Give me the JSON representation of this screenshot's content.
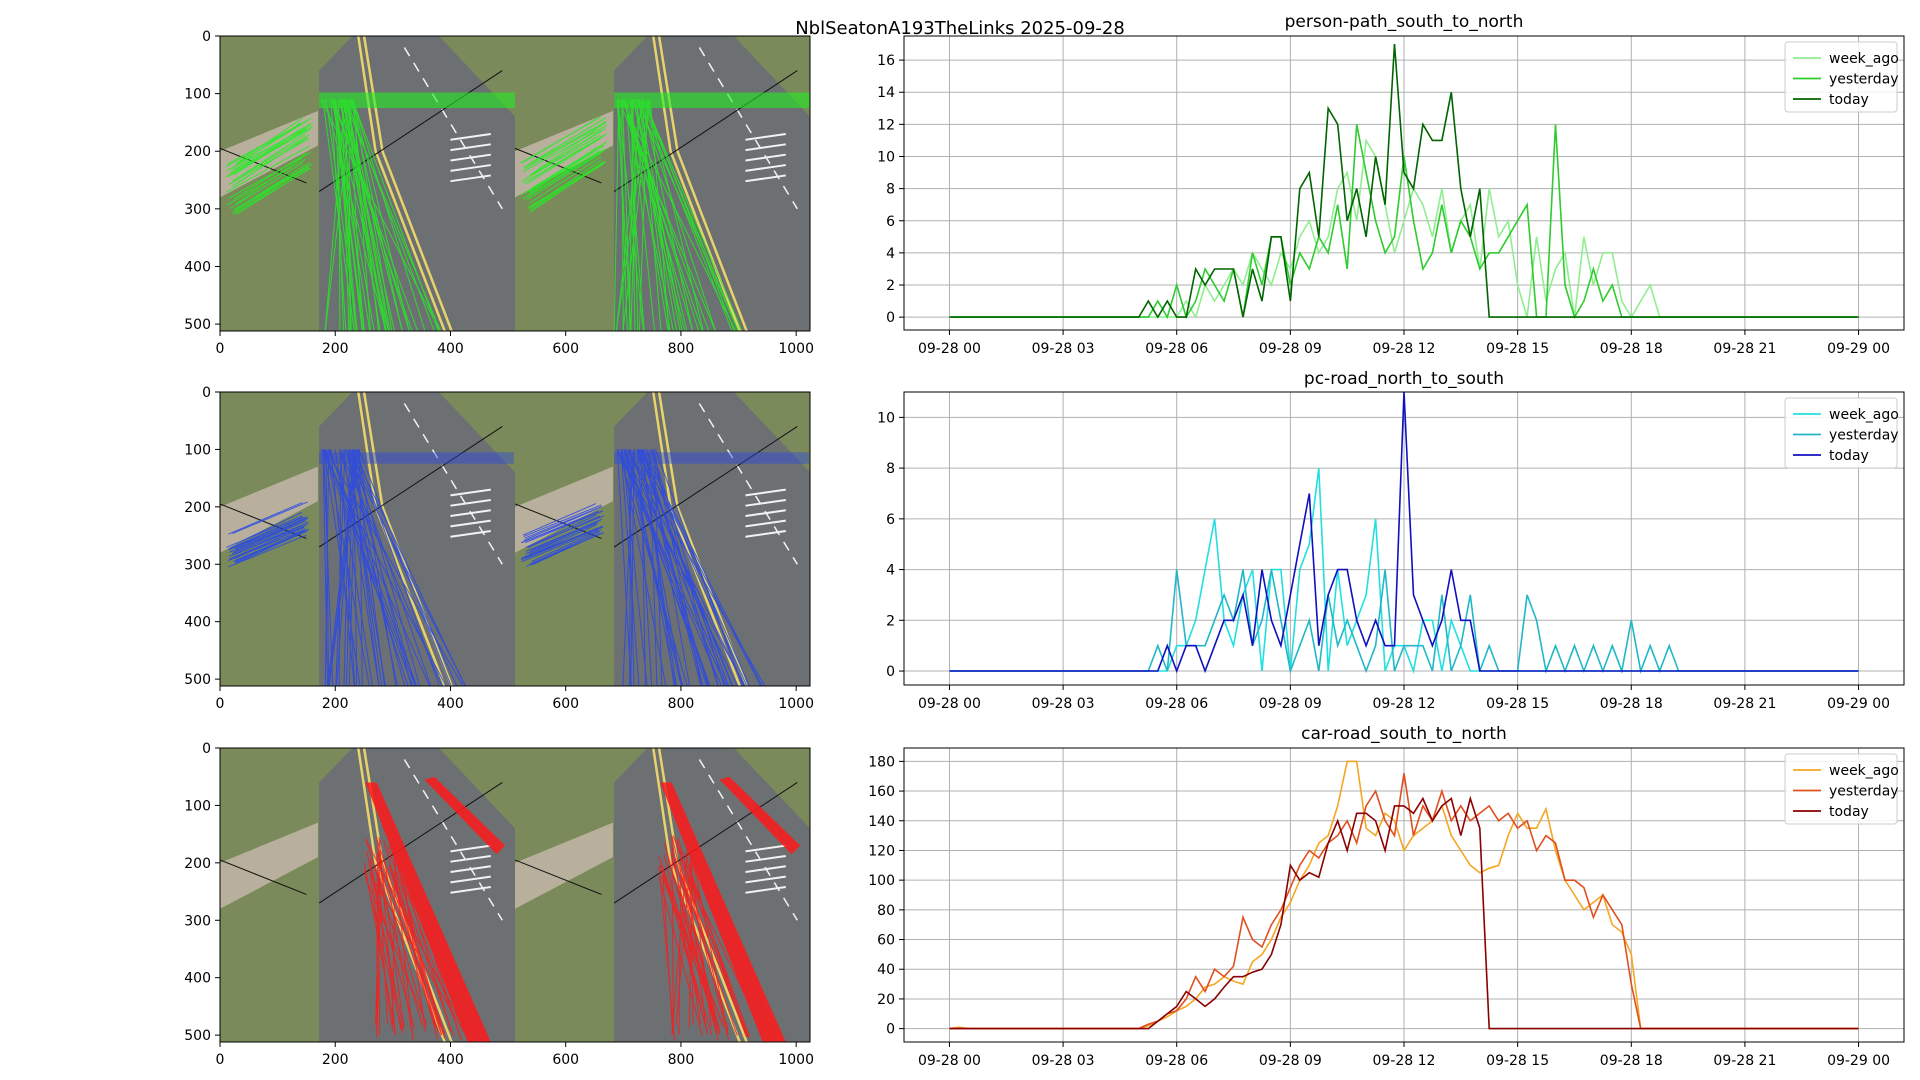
{
  "figure_title": "NblSeatonA193TheLinks 2025-09-28",
  "colors": {
    "grass": "#7a8a5a",
    "road": "#6d7072",
    "footpath": "#b8b09c",
    "line_yellow": "#e7d36a",
    "line_white": "#f2f2f2"
  },
  "image_panels": [
    {
      "name": "person-path-tracks",
      "track_color": "#22ee22",
      "x_ticks": [
        "0",
        "200",
        "400",
        "600",
        "800",
        "1000"
      ],
      "y_ticks": [
        "0",
        "100",
        "200",
        "300",
        "400",
        "500"
      ],
      "xlim": [
        0,
        1024
      ],
      "ylim": [
        0,
        512
      ]
    },
    {
      "name": "pc-road-tracks",
      "track_color": "#2848e8",
      "x_ticks": [
        "0",
        "200",
        "400",
        "600",
        "800",
        "1000"
      ],
      "y_ticks": [
        "0",
        "100",
        "200",
        "300",
        "400",
        "500"
      ],
      "xlim": [
        0,
        1024
      ],
      "ylim": [
        0,
        512
      ]
    },
    {
      "name": "car-road-tracks",
      "track_color": "#ff1a1a",
      "x_ticks": [
        "0",
        "200",
        "400",
        "600",
        "800",
        "1000"
      ],
      "y_ticks": [
        "0",
        "100",
        "200",
        "300",
        "400",
        "500"
      ],
      "xlim": [
        0,
        1024
      ],
      "ylim": [
        0,
        512
      ]
    }
  ],
  "chart_data": [
    {
      "type": "line",
      "title": "person-path_south_to_north",
      "xlabel": "",
      "ylabel": "",
      "x_unit": "hour of 2025-09-28",
      "x_ticks": [
        "09-28 00",
        "09-28 03",
        "09-28 06",
        "09-28 09",
        "09-28 12",
        "09-28 15",
        "09-28 18",
        "09-28 21",
        "09-29 00"
      ],
      "xlim": [
        -1.2,
        25.2
      ],
      "ylim": [
        -0.8,
        17.5
      ],
      "y_ticks": [
        0,
        2,
        4,
        6,
        8,
        10,
        12,
        14,
        16
      ],
      "grid": true,
      "legend": "top-right",
      "series": [
        {
          "name": "week_ago",
          "color": "#90ee90",
          "x": [
            0,
            5,
            5.25,
            5.5,
            5.75,
            6,
            6.25,
            6.5,
            6.75,
            7,
            7.25,
            7.5,
            7.75,
            8,
            8.25,
            8.5,
            8.75,
            9,
            9.25,
            9.5,
            9.75,
            10,
            10.25,
            10.5,
            10.75,
            11,
            11.25,
            11.5,
            11.75,
            12,
            12.25,
            12.5,
            12.75,
            13,
            13.25,
            13.5,
            13.75,
            14,
            14.25,
            14.5,
            14.75,
            15,
            15.25,
            15.5,
            15.75,
            16,
            16.25,
            16.5,
            16.75,
            17,
            17.25,
            17.5,
            17.75,
            18,
            18.25,
            18.5,
            18.75,
            24
          ],
          "y": [
            0,
            0,
            0,
            0,
            0,
            0,
            1,
            0,
            2,
            1,
            2,
            3,
            2,
            4,
            3,
            2,
            4,
            3,
            5,
            6,
            4,
            5,
            8,
            9,
            6,
            11,
            10,
            7,
            4,
            6,
            8,
            7,
            5,
            8,
            4,
            6,
            7,
            3,
            8,
            5,
            6,
            2,
            0,
            5,
            1,
            3,
            4,
            0,
            5,
            2,
            4,
            4,
            1,
            0,
            1,
            2,
            0,
            0
          ]
        },
        {
          "name": "yesterday",
          "color": "#2ecc2e",
          "x": [
            0,
            5,
            5.25,
            5.5,
            5.75,
            6,
            6.25,
            6.5,
            6.75,
            7,
            7.25,
            7.5,
            7.75,
            8,
            8.25,
            8.5,
            8.75,
            9,
            9.25,
            9.5,
            9.75,
            10,
            10.25,
            10.5,
            10.75,
            11,
            11.25,
            11.5,
            11.75,
            12,
            12.25,
            12.5,
            12.75,
            13,
            13.25,
            13.5,
            13.75,
            14,
            14.25,
            14.5,
            14.75,
            15,
            15.25,
            15.5,
            15.75,
            16,
            16.25,
            16.5,
            16.75,
            17,
            17.25,
            17.5,
            17.75,
            18,
            18.25,
            24
          ],
          "y": [
            0,
            0,
            0,
            1,
            0,
            2,
            0,
            1,
            3,
            2,
            1,
            3,
            0,
            4,
            2,
            5,
            5,
            2,
            4,
            3,
            5,
            4,
            7,
            3,
            12,
            9,
            6,
            4,
            5,
            10,
            6,
            3,
            4,
            7,
            4,
            6,
            5,
            3,
            4,
            4,
            5,
            6,
            7,
            0,
            0,
            12,
            2,
            0,
            1,
            3,
            1,
            2,
            0,
            0,
            0,
            0
          ]
        },
        {
          "name": "today",
          "color": "#006400",
          "x": [
            0,
            5,
            5.25,
            5.5,
            5.75,
            6,
            6.25,
            6.5,
            6.75,
            7,
            7.25,
            7.5,
            7.75,
            8,
            8.25,
            8.5,
            8.75,
            9,
            9.25,
            9.5,
            9.75,
            10,
            10.25,
            10.5,
            10.75,
            11,
            11.25,
            11.5,
            11.75,
            12,
            12.25,
            12.5,
            12.75,
            13,
            13.25,
            13.5,
            13.75,
            14,
            14.25,
            24
          ],
          "y": [
            0,
            0,
            1,
            0,
            1,
            0,
            0,
            3,
            2,
            3,
            3,
            3,
            0,
            3,
            1,
            5,
            5,
            1,
            8,
            9,
            5,
            13,
            12,
            6,
            8,
            5,
            10,
            7,
            17,
            9,
            8,
            12,
            11,
            11,
            14,
            8,
            5,
            8,
            0,
            0
          ]
        }
      ]
    },
    {
      "type": "line",
      "title": "pc-road_north_to_south",
      "xlabel": "",
      "ylabel": "",
      "x_unit": "hour of 2025-09-28",
      "x_ticks": [
        "09-28 00",
        "09-28 03",
        "09-28 06",
        "09-28 09",
        "09-28 12",
        "09-28 15",
        "09-28 18",
        "09-28 21",
        "09-29 00"
      ],
      "xlim": [
        -1.2,
        25.2
      ],
      "ylim": [
        -0.55,
        11.0
      ],
      "y_ticks": [
        0,
        2,
        4,
        6,
        8,
        10
      ],
      "grid": true,
      "legend": "top-right",
      "series": [
        {
          "name": "week_ago",
          "color": "#22e0e0",
          "x": [
            0,
            5,
            5.25,
            5.5,
            5.75,
            6,
            6.25,
            6.5,
            6.75,
            7,
            7.25,
            7.5,
            7.75,
            8,
            8.25,
            8.5,
            8.75,
            9,
            9.25,
            9.5,
            9.75,
            10,
            10.25,
            10.5,
            10.75,
            11,
            11.25,
            11.5,
            11.75,
            12,
            12.25,
            12.5,
            12.75,
            13,
            13.25,
            13.5,
            13.75,
            14,
            14.25,
            24
          ],
          "y": [
            0,
            0,
            0,
            0,
            0,
            1,
            1,
            2,
            4,
            6,
            2,
            1,
            3,
            4,
            0,
            4,
            4,
            0,
            4,
            5,
            8,
            0,
            4,
            1,
            2,
            3,
            6,
            0,
            1,
            1,
            0,
            2,
            2,
            0,
            2,
            1,
            0,
            0,
            0,
            0
          ]
        },
        {
          "name": "yesterday",
          "color": "#20b8c8",
          "x": [
            0,
            5,
            5.25,
            5.5,
            5.75,
            6,
            6.25,
            6.5,
            6.75,
            7,
            7.25,
            7.5,
            7.75,
            8,
            8.25,
            8.5,
            8.75,
            9,
            9.25,
            9.5,
            9.75,
            10,
            10.25,
            10.5,
            10.75,
            11,
            11.25,
            11.5,
            11.75,
            12,
            12.25,
            12.5,
            12.75,
            13,
            13.25,
            13.5,
            13.75,
            14,
            14.25,
            14.5,
            14.75,
            15,
            15.25,
            15.5,
            15.75,
            16,
            16.25,
            16.5,
            16.75,
            17,
            17.25,
            17.5,
            17.75,
            18,
            18.25,
            18.5,
            18.75,
            19,
            19.25,
            19.5,
            24
          ],
          "y": [
            0,
            0,
            0,
            1,
            0,
            4,
            1,
            1,
            1,
            2,
            3,
            2,
            4,
            1,
            2,
            4,
            2,
            0,
            1,
            2,
            0,
            3,
            1,
            2,
            1,
            0,
            1,
            4,
            0,
            1,
            1,
            1,
            0,
            3,
            0,
            1,
            3,
            0,
            1,
            0,
            0,
            0,
            3,
            2,
            0,
            1,
            0,
            1,
            0,
            1,
            0,
            1,
            0,
            2,
            0,
            1,
            0,
            1,
            0,
            0,
            0
          ]
        },
        {
          "name": "today",
          "color": "#1010c0",
          "x": [
            0,
            5,
            5.25,
            5.5,
            5.75,
            6,
            6.25,
            6.5,
            6.75,
            7,
            7.25,
            7.5,
            7.75,
            8,
            8.25,
            8.5,
            8.75,
            9,
            9.25,
            9.5,
            9.75,
            10,
            10.25,
            10.5,
            10.75,
            11,
            11.25,
            11.5,
            11.75,
            12,
            12.25,
            12.5,
            12.75,
            13,
            13.25,
            13.5,
            13.75,
            14,
            14.25,
            24
          ],
          "y": [
            0,
            0,
            0,
            0,
            1,
            0,
            1,
            1,
            0,
            1,
            2,
            2,
            3,
            1,
            4,
            2,
            1,
            3,
            5,
            7,
            1,
            3,
            4,
            4,
            2,
            1,
            2,
            1,
            1,
            11,
            3,
            2,
            1,
            2,
            4,
            2,
            2,
            0,
            0,
            0
          ]
        }
      ]
    },
    {
      "type": "line",
      "title": "car-road_south_to_north",
      "xlabel": "",
      "ylabel": "",
      "x_unit": "hour of 2025-09-28",
      "x_ticks": [
        "09-28 00",
        "09-28 03",
        "09-28 06",
        "09-28 09",
        "09-28 12",
        "09-28 15",
        "09-28 18",
        "09-28 21",
        "09-29 00"
      ],
      "xlim": [
        -1.2,
        25.2
      ],
      "ylim": [
        -9,
        189
      ],
      "y_ticks": [
        0,
        20,
        40,
        60,
        80,
        100,
        120,
        140,
        160,
        180
      ],
      "grid": true,
      "legend": "top-right",
      "series": [
        {
          "name": "week_ago",
          "color": "#f5a623",
          "x": [
            0,
            0.25,
            0.5,
            5,
            5.25,
            5.5,
            5.75,
            6,
            6.25,
            6.5,
            6.75,
            7,
            7.25,
            7.5,
            7.75,
            8,
            8.25,
            8.5,
            8.75,
            9,
            9.25,
            9.5,
            9.75,
            10,
            10.25,
            10.5,
            10.75,
            11,
            11.25,
            11.5,
            11.75,
            12,
            12.25,
            12.5,
            12.75,
            13,
            13.25,
            13.5,
            13.75,
            14,
            14.25,
            14.5,
            14.75,
            15,
            15.25,
            15.5,
            15.75,
            16,
            16.25,
            16.5,
            16.75,
            17,
            17.25,
            17.5,
            17.75,
            18,
            18.25,
            18.5,
            24
          ],
          "y": [
            0,
            1,
            0,
            0,
            2,
            5,
            8,
            12,
            15,
            20,
            28,
            30,
            35,
            32,
            30,
            45,
            50,
            60,
            75,
            85,
            100,
            110,
            125,
            130,
            150,
            180,
            180,
            135,
            130,
            145,
            140,
            120,
            130,
            135,
            140,
            150,
            130,
            120,
            110,
            105,
            108,
            110,
            130,
            145,
            135,
            135,
            148,
            120,
            100,
            90,
            80,
            85,
            90,
            70,
            65,
            50,
            0,
            0,
            0
          ]
        },
        {
          "name": "yesterday",
          "color": "#e05020",
          "x": [
            0,
            5,
            5.25,
            5.5,
            5.75,
            6,
            6.25,
            6.5,
            6.75,
            7,
            7.25,
            7.5,
            7.75,
            8,
            8.25,
            8.5,
            8.75,
            9,
            9.25,
            9.5,
            9.75,
            10,
            10.25,
            10.5,
            10.75,
            11,
            11.25,
            11.5,
            11.75,
            12,
            12.25,
            12.5,
            12.75,
            13,
            13.25,
            13.5,
            13.75,
            14,
            14.25,
            14.5,
            14.75,
            15,
            15.25,
            15.5,
            15.75,
            16,
            16.25,
            16.5,
            16.75,
            17,
            17.25,
            17.5,
            17.75,
            18,
            18.25,
            24
          ],
          "y": [
            0,
            0,
            3,
            5,
            10,
            12,
            20,
            35,
            25,
            40,
            35,
            42,
            75,
            60,
            55,
            70,
            80,
            95,
            110,
            120,
            115,
            125,
            130,
            140,
            125,
            150,
            160,
            140,
            130,
            172,
            130,
            150,
            140,
            160,
            140,
            150,
            140,
            145,
            150,
            140,
            145,
            135,
            140,
            120,
            130,
            125,
            100,
            100,
            95,
            75,
            90,
            80,
            70,
            30,
            0,
            0
          ]
        },
        {
          "name": "today",
          "color": "#8b0000",
          "x": [
            0,
            5,
            5.25,
            5.5,
            5.75,
            6,
            6.25,
            6.5,
            6.75,
            7,
            7.25,
            7.5,
            7.75,
            8,
            8.25,
            8.5,
            8.75,
            9,
            9.25,
            9.5,
            9.75,
            10,
            10.25,
            10.5,
            10.75,
            11,
            11.25,
            11.5,
            11.75,
            12,
            12.25,
            12.5,
            12.75,
            13,
            13.25,
            13.5,
            13.75,
            14,
            14.25,
            24
          ],
          "y": [
            0,
            0,
            0,
            5,
            10,
            15,
            25,
            20,
            15,
            20,
            28,
            35,
            35,
            38,
            40,
            50,
            70,
            110,
            100,
            105,
            102,
            125,
            140,
            120,
            145,
            145,
            140,
            120,
            150,
            150,
            145,
            155,
            140,
            150,
            155,
            130,
            155,
            135,
            0,
            0
          ]
        }
      ]
    }
  ]
}
